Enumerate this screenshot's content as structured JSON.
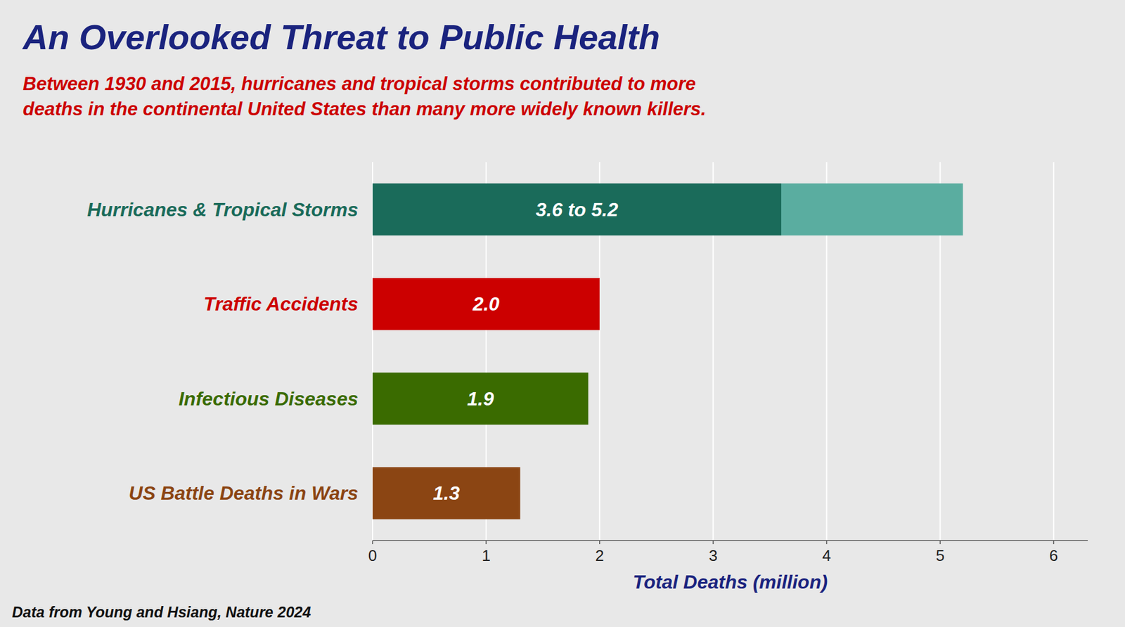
{
  "chart_data": {
    "type": "bar",
    "orientation": "horizontal",
    "title": "An Overlooked Threat to Public Health",
    "subtitle": [
      "Between 1930 and 2015, hurricanes and tropical storms contributed to more",
      "deaths in the continental United States than many more widely known killers."
    ],
    "categories": [
      "Hurricanes & Tropical Storms",
      "Traffic Accidents",
      "Infectious Diseases",
      "US Battle Deaths in Wars"
    ],
    "values": [
      3.6,
      2.0,
      1.9,
      1.3
    ],
    "upper_values": [
      5.2,
      null,
      null,
      null
    ],
    "value_labels": [
      "3.6 to 5.2",
      "2.0",
      "1.9",
      "1.3"
    ],
    "colors": [
      "#1a6b5a",
      "#cc0000",
      "#3a6b00",
      "#8b4513"
    ],
    "upper_color": "#5aada0",
    "xlabel": "Total Deaths (million)",
    "xlim": [
      0,
      6.3
    ],
    "xticks": [
      0,
      1,
      2,
      3,
      4,
      5,
      6
    ],
    "grid": true,
    "data_labels": true,
    "annotation": "Data from Young and Hsiang, Nature 2024"
  }
}
